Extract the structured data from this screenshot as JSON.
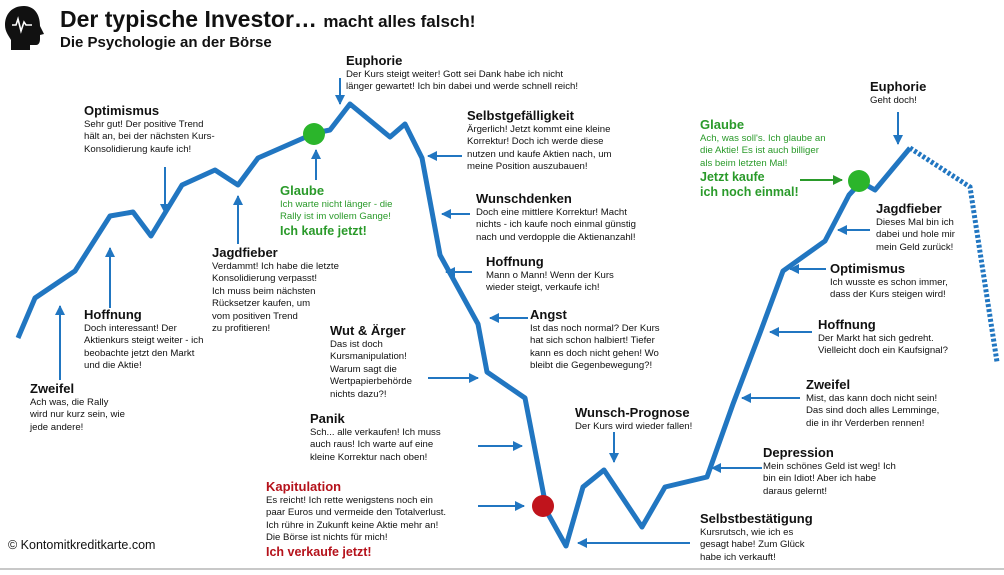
{
  "header": {
    "title": "Der typische Investor…",
    "title_suffix": "macht alles falsch!",
    "subtitle": "Die Psychologie an der Börse",
    "logo_icon": "head-profile-icon"
  },
  "colors": {
    "line": "#2176c1",
    "arrow": "#2176c1",
    "green": "#2a9a2a",
    "red": "#b5121b"
  },
  "phases": {
    "zweifel1": {
      "title": "Zweifel",
      "text": "Ach was, die Rally\nwird nur kurz sein, wie\njede andere!"
    },
    "hoffnung1": {
      "title": "Hoffnung",
      "text": "Doch interessant! Der\nAktienkurs steigt weiter - ich\nbeobachte jetzt den Markt\nund die Aktie!"
    },
    "optimismus1": {
      "title": "Optimismus",
      "text": "Sehr gut! Der positive Trend\nhält an, bei der nächsten Kurs-\nKonsolidierung kaufe ich!"
    },
    "jagdfieber1": {
      "title": "Jagdfieber",
      "text": "Verdammt! Ich habe die letzte\nKonsolidierung verpasst!\nIch muss beim nächsten\nRücksetzer kaufen, um\nvom positiven Trend\nzu profitieren!"
    },
    "glaube1": {
      "title": "Glaube",
      "text": "Ich warte nicht länger - die\nRally ist im vollem Gange!",
      "emphasis": "Ich kaufe jetzt!"
    },
    "euphorie1": {
      "title": "Euphorie",
      "text": "Der Kurs steigt weiter! Gott sei Dank habe ich nicht\nlänger gewartet! Ich bin dabei und werde schnell reich!"
    },
    "selbstgefaelligkeit": {
      "title": "Selbstgefälligkeit",
      "text": "Ärgerlich! Jetzt kommt eine kleine\nKorrektur! Doch ich werde diese\nnutzen und kaufe Aktien nach, um\nmeine Position auszubauen!"
    },
    "wunschdenken": {
      "title": "Wunschdenken",
      "text": "Doch eine mittlere Korrektur! Macht\nnichts - ich kaufe noch einmal günstig\nnach und verdopple die Aktienanzahl!"
    },
    "hoffnung2": {
      "title": "Hoffnung",
      "text": "Mann o Mann! Wenn der Kurs\nwieder steigt, verkaufe ich!"
    },
    "wut": {
      "title": "Wut & Ärger",
      "text": "Das ist doch\nKursmanipulation!\nWarum sagt die\nWertpapierbehörde\nnichts dazu?!"
    },
    "angst": {
      "title": "Angst",
      "text": "Ist das noch normal? Der Kurs\nhat sich schon halbiert! Tiefer\nkann es doch nicht gehen! Wo\nbleibt die Gegenbewegung?!"
    },
    "panik": {
      "title": "Panik",
      "text": "Sch... alle verkaufen! Ich muss\nauch raus! Ich warte auf eine\nkleine Korrektur nach oben!"
    },
    "kapitulation": {
      "title": "Kapitulation",
      "text": "Es reicht! Ich rette wenigstens noch ein\npaar Euros und vermeide den Totalverlust.\nIch rühre in Zukunft keine Aktie mehr an!\nDie Börse ist nichts für mich!",
      "emphasis": "Ich verkaufe jetzt!"
    },
    "wunsch_prognose": {
      "title": "Wunsch-Prognose",
      "text": "Der Kurs wird wieder fallen!"
    },
    "selbstbestaetigung": {
      "title": "Selbstbestätigung",
      "text": "Kursrutsch, wie ich es\ngesagt habe! Zum Glück\nhabe ich verkauft!"
    },
    "depression": {
      "title": "Depression",
      "text": "Mein schönes Geld ist weg! Ich\nbin ein Idiot! Aber ich habe\ndaraus gelernt!"
    },
    "zweifel2": {
      "title": "Zweifel",
      "text": "Mist, das kann doch nicht sein!\nDas sind doch alles Lemminge,\ndie in ihr Verderben rennen!"
    },
    "hoffnung3": {
      "title": "Hoffnung",
      "text": "Der Markt hat sich gedreht.\nVielleicht doch ein Kaufsignal?"
    },
    "optimismus2": {
      "title": "Optimismus",
      "text": "Ich wusste es schon immer,\ndass der Kurs steigen wird!"
    },
    "jagdfieber2": {
      "title": "Jagdfieber",
      "text": "Dieses Mal bin ich\ndabei und hole mir\nmein Geld zurück!"
    },
    "glaube2": {
      "title": "Glaube",
      "text": "Ach, was soll's. Ich glaube an\ndie Aktie! Es ist auch billiger\nals beim letzten Mal!",
      "emphasis": "Jetzt kaufe\nich noch einmal!"
    },
    "euphorie2": {
      "title": "Euphorie",
      "text": "Geht doch!"
    }
  },
  "footer": {
    "copyright": "© Kontomitkreditkarte.com"
  }
}
